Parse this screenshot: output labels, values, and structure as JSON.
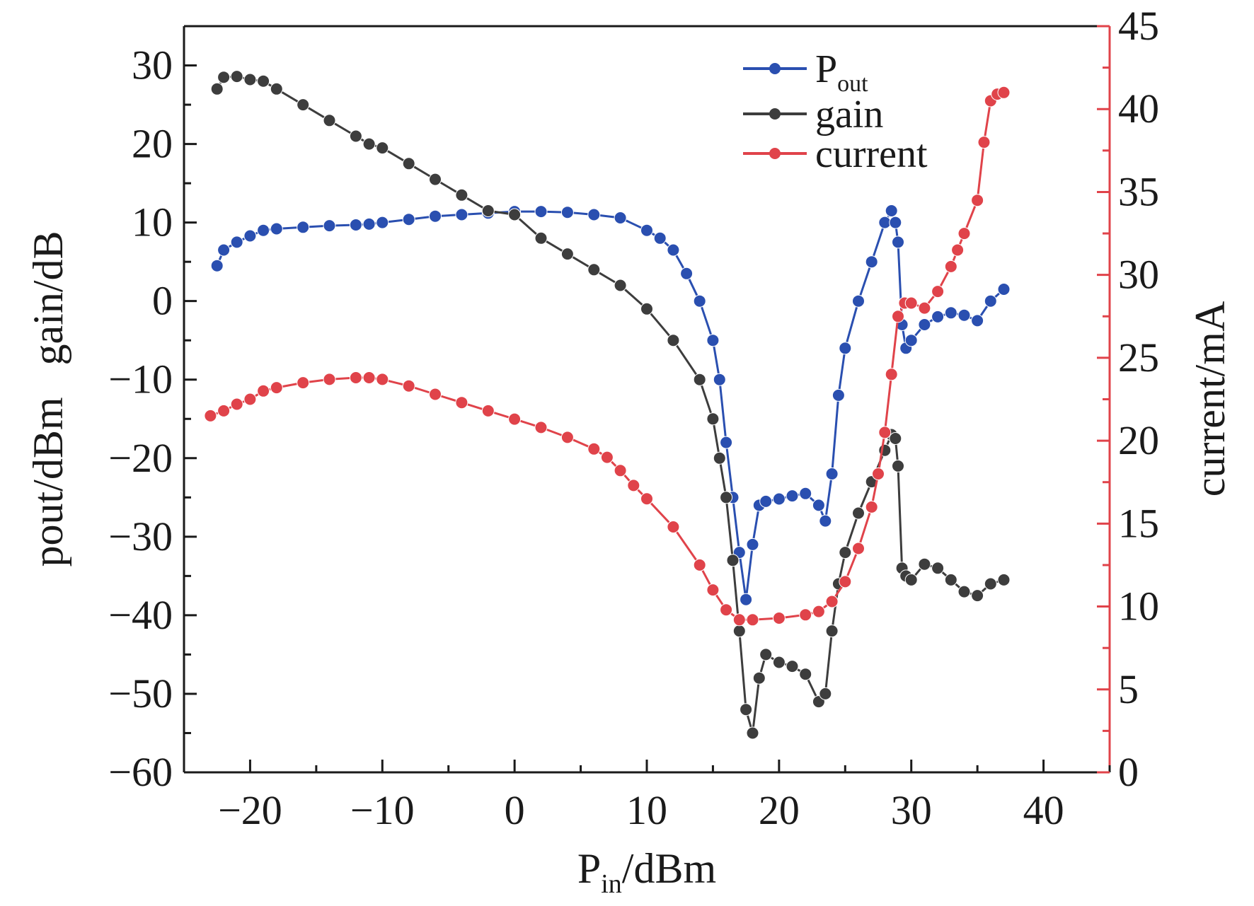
{
  "chart_data": {
    "type": "line",
    "title": "",
    "xlabel": {
      "main": "P",
      "sub": "in",
      "rest": "/dBm"
    },
    "ylabel_left": "pout/dBm   gain/dB",
    "ylabel_right": "current/mA",
    "xlim": [
      -25,
      45
    ],
    "ylim_left": [
      -60,
      35
    ],
    "ylim_right": [
      0,
      45
    ],
    "x_ticks": [
      "−20",
      "−10",
      "0",
      "10",
      "20",
      "30",
      "40"
    ],
    "x_tick_values": [
      -20,
      -10,
      0,
      10,
      20,
      30,
      40
    ],
    "y_left_ticks": [
      "30",
      "20",
      "10",
      "0",
      "−10",
      "−20",
      "−30",
      "−40",
      "−50",
      "−60"
    ],
    "y_left_tick_values": [
      30,
      20,
      10,
      0,
      -10,
      -20,
      -30,
      -40,
      -50,
      -60
    ],
    "y_right_ticks": [
      "45",
      "40",
      "35",
      "30",
      "25",
      "20",
      "15",
      "10",
      "5",
      "0"
    ],
    "y_right_tick_values": [
      45,
      40,
      35,
      30,
      25,
      20,
      15,
      10,
      5,
      0
    ],
    "legend_position": "top-right",
    "grid": false,
    "colors": {
      "pout": "#2a4fb0",
      "gain": "#3d3d3d",
      "current": "#e0434a",
      "axis": "#1a1a1a",
      "right_axis": "#e0434a"
    },
    "series": [
      {
        "key": "pout",
        "name_main": "P",
        "name_sub": "out",
        "axis": "left",
        "color": "#2a4fb0",
        "x": [
          -22.5,
          -22,
          -21,
          -20,
          -19,
          -18,
          -16,
          -14,
          -12,
          -11,
          -10,
          -8,
          -6,
          -4,
          -2,
          0,
          2,
          4,
          6,
          8,
          10,
          11,
          12,
          13,
          14,
          15,
          15.5,
          16,
          16.5,
          17,
          17.5,
          18,
          18.5,
          19,
          20,
          21,
          22,
          23,
          23.5,
          24,
          24.5,
          25,
          26,
          27,
          28,
          28.5,
          28.8,
          29,
          29.3,
          29.6,
          30,
          31,
          32,
          33,
          34,
          35,
          36,
          37
        ],
        "values": [
          4.5,
          6.5,
          7.5,
          8.3,
          9,
          9.2,
          9.4,
          9.6,
          9.7,
          9.8,
          10,
          10.4,
          10.8,
          11,
          11.2,
          11.4,
          11.4,
          11.3,
          11,
          10.6,
          9,
          8,
          6.5,
          3.5,
          0,
          -5,
          -10,
          -18,
          -25,
          -32,
          -38,
          -31,
          -26,
          -25.5,
          -25.2,
          -24.8,
          -24.5,
          -26,
          -28,
          -22,
          -12,
          -6,
          0,
          5,
          10,
          11.5,
          10,
          7.5,
          -3,
          -6,
          -5,
          -3,
          -2,
          -1.5,
          -1.8,
          -2.5,
          0,
          1.5
        ]
      },
      {
        "key": "gain",
        "name_main": "gain",
        "axis": "left",
        "color": "#3d3d3d",
        "x": [
          -22.5,
          -22,
          -21,
          -20,
          -19,
          -18,
          -16,
          -14,
          -12,
          -11,
          -10,
          -8,
          -6,
          -4,
          -2,
          0,
          2,
          4,
          6,
          8,
          10,
          12,
          14,
          15,
          15.5,
          16,
          16.5,
          17,
          17.5,
          18,
          18.5,
          19,
          20,
          21,
          22,
          23,
          23.5,
          24,
          24.5,
          25,
          26,
          27,
          28,
          28.5,
          28.8,
          29,
          29.3,
          29.6,
          30,
          31,
          32,
          33,
          34,
          35,
          36,
          37
        ],
        "values": [
          27,
          28.5,
          28.6,
          28.2,
          28,
          27,
          25,
          23,
          21,
          20,
          19.5,
          17.5,
          15.5,
          13.5,
          11.5,
          11,
          8,
          6,
          4,
          2,
          -1,
          -5,
          -10,
          -15,
          -20,
          -25,
          -33,
          -42,
          -52,
          -55,
          -48,
          -45,
          -46,
          -46.5,
          -47.5,
          -51,
          -50,
          -42,
          -36,
          -32,
          -27,
          -23,
          -19,
          -17,
          -17.5,
          -21,
          -34,
          -35,
          -35.5,
          -33.5,
          -34,
          -35.5,
          -37,
          -37.5,
          -36,
          -35.5
        ]
      },
      {
        "key": "current",
        "name_main": "current",
        "axis": "right",
        "color": "#e0434a",
        "x": [
          -23,
          -22,
          -21,
          -20,
          -19,
          -18,
          -16,
          -14,
          -12,
          -11,
          -10,
          -8,
          -6,
          -4,
          -2,
          0,
          2,
          4,
          6,
          7,
          8,
          9,
          10,
          12,
          14,
          15,
          16,
          17,
          18,
          20,
          22,
          23,
          24,
          25,
          26,
          27,
          27.5,
          28,
          28.5,
          29,
          29.5,
          30,
          31,
          32,
          33,
          33.5,
          34,
          35,
          35.5,
          36,
          36.5,
          37
        ],
        "values": [
          21.5,
          21.8,
          22.2,
          22.5,
          23,
          23.2,
          23.5,
          23.7,
          23.8,
          23.8,
          23.7,
          23.3,
          22.8,
          22.3,
          21.8,
          21.3,
          20.8,
          20.2,
          19.5,
          19,
          18.2,
          17.3,
          16.5,
          14.8,
          12.5,
          11,
          9.8,
          9.2,
          9.2,
          9.3,
          9.5,
          9.7,
          10.3,
          11.5,
          13.5,
          16,
          18,
          20.5,
          24,
          27.5,
          28.3,
          28.3,
          28,
          29,
          30.5,
          31.5,
          32.5,
          34.5,
          38,
          40.5,
          40.9,
          41
        ]
      }
    ]
  }
}
